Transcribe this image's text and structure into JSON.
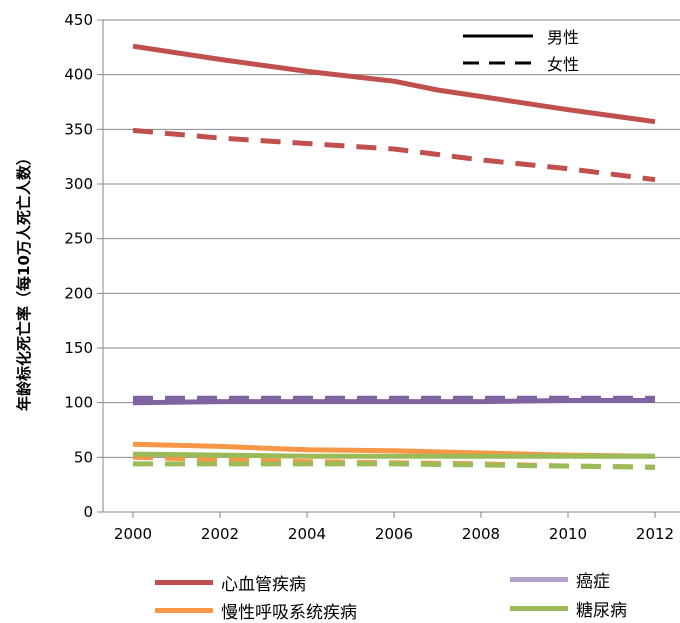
{
  "chart_data": {
    "type": "line",
    "ylabel": "年龄标化死亡率（每10万人死亡人数）",
    "xlabel": "",
    "x_ticks": [
      "2000",
      "2002",
      "2004",
      "2006",
      "2008",
      "2010",
      "2012"
    ],
    "y_ticks": [
      "0",
      "50",
      "100",
      "150",
      "200",
      "250",
      "300",
      "350",
      "400",
      "450"
    ],
    "ylim": [
      0,
      450
    ],
    "xlim": [
      2000,
      2012
    ],
    "grid": "horizontal",
    "style_legend": [
      {
        "label": "男性",
        "dash": "solid"
      },
      {
        "label": "女性",
        "dash": "dashed"
      }
    ],
    "disease_legend": [
      {
        "label": "心血管疾病",
        "color": "#c0504d"
      },
      {
        "label": "慢性呼吸系统疾病",
        "color": "#f79646"
      },
      {
        "label": "癌症",
        "color": "#8064a2"
      },
      {
        "label": "糖尿病",
        "color": "#9bbb59"
      }
    ],
    "series": [
      {
        "disease": "心血管疾病",
        "sex": "男性",
        "color": "#c0504d",
        "dash": "solid",
        "points": [
          [
            2000,
            426
          ],
          [
            2002,
            414
          ],
          [
            2004,
            403
          ],
          [
            2006,
            394
          ],
          [
            2007,
            386
          ],
          [
            2008,
            380
          ],
          [
            2010,
            368
          ],
          [
            2012,
            357
          ]
        ]
      },
      {
        "disease": "心血管疾病",
        "sex": "女性",
        "color": "#c0504d",
        "dash": "dashed",
        "points": [
          [
            2000,
            349
          ],
          [
            2002,
            342
          ],
          [
            2004,
            337
          ],
          [
            2006,
            332
          ],
          [
            2008,
            322
          ],
          [
            2010,
            314
          ],
          [
            2012,
            304
          ]
        ]
      },
      {
        "disease": "癌症",
        "sex": "男性",
        "color": "#8064a2",
        "dash": "solid",
        "points": [
          [
            2000,
            100
          ],
          [
            2002,
            101
          ],
          [
            2004,
            101
          ],
          [
            2006,
            101
          ],
          [
            2008,
            101
          ],
          [
            2010,
            102
          ],
          [
            2012,
            102
          ]
        ]
      },
      {
        "disease": "癌症",
        "sex": "女性",
        "color": "#8064a2",
        "dash": "dashed",
        "points": [
          [
            2000,
            104
          ],
          [
            2002,
            104
          ],
          [
            2004,
            104
          ],
          [
            2006,
            104
          ],
          [
            2008,
            104
          ],
          [
            2010,
            104
          ],
          [
            2012,
            104
          ]
        ]
      },
      {
        "disease": "慢性呼吸系统疾病",
        "sex": "男性",
        "color": "#f79646",
        "dash": "solid",
        "points": [
          [
            2000,
            62
          ],
          [
            2002,
            60
          ],
          [
            2004,
            57
          ],
          [
            2006,
            56
          ],
          [
            2008,
            54
          ],
          [
            2010,
            52
          ],
          [
            2012,
            51
          ]
        ]
      },
      {
        "disease": "慢性呼吸系统疾病",
        "sex": "女性",
        "color": "#f79646",
        "dash": "dashed",
        "points": [
          [
            2000,
            50
          ],
          [
            2002,
            48
          ],
          [
            2004,
            46
          ],
          [
            2006,
            45
          ],
          [
            2008,
            44
          ],
          [
            2010,
            42
          ],
          [
            2012,
            41
          ]
        ]
      },
      {
        "disease": "糖尿病",
        "sex": "男性",
        "color": "#9bbb59",
        "dash": "solid",
        "points": [
          [
            2000,
            53
          ],
          [
            2002,
            52
          ],
          [
            2004,
            51
          ],
          [
            2006,
            51
          ],
          [
            2008,
            51
          ],
          [
            2010,
            51
          ],
          [
            2012,
            51
          ]
        ]
      },
      {
        "disease": "糖尿病",
        "sex": "女性",
        "color": "#9bbb59",
        "dash": "dashed",
        "points": [
          [
            2000,
            44
          ],
          [
            2002,
            44
          ],
          [
            2004,
            44
          ],
          [
            2006,
            44
          ],
          [
            2008,
            43
          ],
          [
            2010,
            42
          ],
          [
            2012,
            41
          ]
        ]
      }
    ]
  }
}
